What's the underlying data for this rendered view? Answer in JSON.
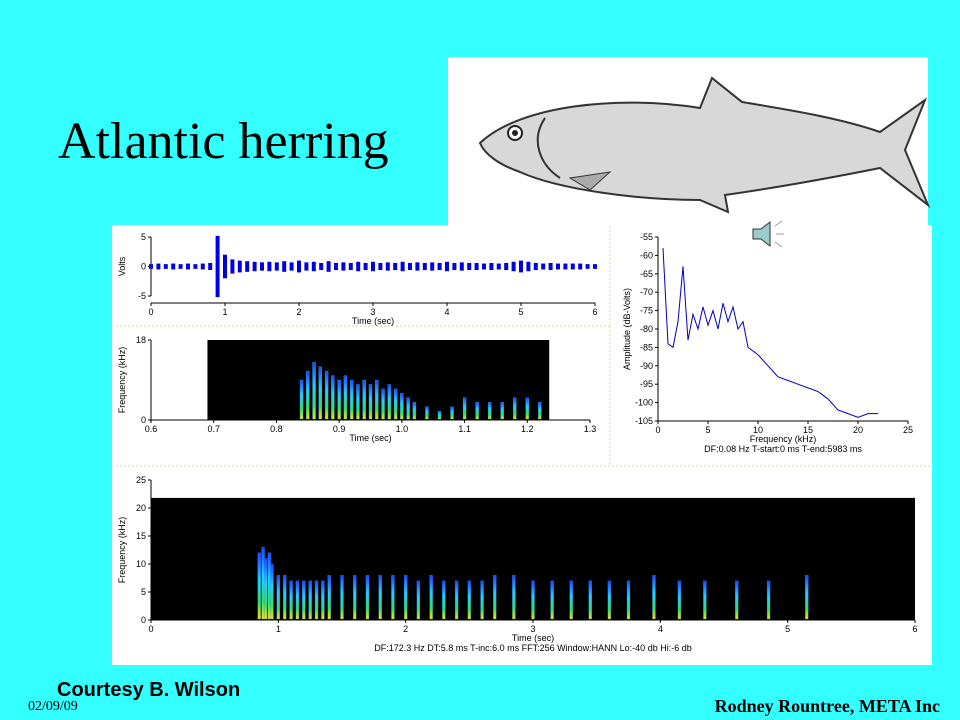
{
  "slide": {
    "title": "Atlantic herring",
    "credit": "Courtesy B. Wilson",
    "date": "02/09/09",
    "author": "Rodney Rountree, META Inc"
  },
  "chart_data": [
    {
      "type": "waveform",
      "xlabel": "Time (sec)",
      "ylabel": "Volts",
      "color": "#0000e0",
      "xlim": [
        0,
        6
      ],
      "ylim": [
        -5,
        5
      ],
      "xticks": [
        0,
        1,
        2,
        3,
        4,
        5,
        6
      ],
      "yticks": [
        -5,
        0,
        5
      ],
      "x": [
        0,
        0.1,
        0.2,
        0.3,
        0.4,
        0.5,
        0.6,
        0.7,
        0.8,
        0.9,
        1.0,
        1.1,
        1.2,
        1.3,
        1.4,
        1.5,
        1.6,
        1.7,
        1.8,
        1.9,
        2.0,
        2.1,
        2.2,
        2.3,
        2.4,
        2.5,
        2.6,
        2.7,
        2.8,
        2.9,
        3.0,
        3.1,
        3.2,
        3.3,
        3.4,
        3.5,
        3.6,
        3.7,
        3.8,
        3.9,
        4.0,
        4.1,
        4.2,
        4.3,
        4.4,
        4.5,
        4.6,
        4.7,
        4.8,
        4.9,
        5.0,
        5.1,
        5.2,
        5.3,
        5.4,
        5.5,
        5.6,
        5.7,
        5.8,
        5.9,
        6.0
      ],
      "values": [
        0.4,
        0.5,
        0.4,
        0.5,
        0.4,
        0.5,
        0.4,
        0.5,
        0.6,
        5.2,
        2.0,
        1.2,
        1.0,
        0.9,
        0.8,
        0.7,
        0.8,
        0.7,
        0.9,
        0.7,
        1.0,
        0.7,
        0.8,
        0.6,
        0.9,
        0.6,
        0.7,
        0.6,
        0.8,
        0.6,
        0.8,
        0.6,
        0.7,
        0.6,
        0.8,
        0.6,
        0.7,
        0.6,
        0.7,
        0.6,
        0.8,
        0.6,
        0.7,
        0.6,
        0.6,
        0.5,
        0.6,
        0.5,
        0.6,
        0.8,
        1.0,
        0.8,
        0.6,
        0.5,
        0.6,
        0.5,
        0.5,
        0.5,
        0.5,
        0.4,
        0.4
      ]
    },
    {
      "type": "spectrogram",
      "xlabel": "Time (sec)",
      "ylabel": "Frequency (kHz)",
      "color": "#20c0ff",
      "xlim": [
        0.6,
        1.3
      ],
      "ylim": [
        0,
        18
      ],
      "xticks": [
        0.6,
        0.7,
        0.8,
        0.9,
        {
          "value": 1,
          "label": "1.0"
        },
        1.1,
        1.2,
        1.3
      ],
      "yticks": [
        0,
        18
      ],
      "plot_extent": {
        "x": [
          0.69,
          1.235
        ],
        "y": [
          0,
          18
        ]
      },
      "x": [
        0.84,
        0.85,
        0.86,
        0.87,
        0.88,
        0.89,
        0.9,
        0.91,
        0.92,
        0.93,
        0.94,
        0.95,
        0.96,
        0.97,
        0.98,
        0.99,
        1.0,
        1.01,
        1.02,
        1.04,
        1.06,
        1.08,
        1.1,
        1.12,
        1.14,
        1.16,
        1.18,
        1.2,
        1.22
      ],
      "values": [
        9,
        11,
        13,
        12,
        11,
        10,
        9,
        10,
        9,
        8,
        9,
        8,
        9,
        7,
        8,
        7,
        6,
        5,
        4,
        3,
        2,
        3,
        5,
        4,
        4,
        4,
        5,
        5,
        4
      ]
    },
    {
      "type": "line",
      "xlabel": "Frequency (kHz)",
      "ylabel": "Amplitude (dB-Volts)",
      "color": "#0000c0",
      "note": "DF:0.08 Hz   T-start:0 ms   T-end:5983 ms",
      "xlim": [
        0,
        25
      ],
      "ylim": [
        -105,
        -55
      ],
      "xticks": [
        0,
        5,
        10,
        15,
        20,
        25
      ],
      "yticks": [
        -55,
        -60,
        -65,
        -70,
        -75,
        -80,
        -85,
        -90,
        -95,
        -100,
        -105
      ],
      "x": [
        0.5,
        1,
        1.5,
        2,
        2.5,
        3,
        3.5,
        4,
        4.5,
        5,
        5.5,
        6,
        6.5,
        7,
        7.5,
        8,
        8.5,
        9,
        10,
        11,
        12,
        13,
        14,
        15,
        16,
        17,
        18,
        19,
        20,
        21,
        22
      ],
      "values": [
        -58,
        -84,
        -85,
        -78,
        -63,
        -83,
        -76,
        -80,
        -74,
        -79,
        -75,
        -80,
        -73,
        -78,
        -74,
        -80,
        -78,
        -85,
        -87,
        -90,
        -93,
        -94,
        -95,
        -96,
        -97,
        -99,
        -102,
        -103,
        -104,
        -103,
        -103
      ]
    },
    {
      "type": "spectrogram",
      "xlabel": "Time (sec)",
      "ylabel": "Frequency (kHz)",
      "color": "#2080ff",
      "note": "DF:172.3 Hz   DT:5.8 ms   T-inc:6.0 ms   FFT:256   Window:HANN   Lo:-40 db   Hi:-6 db",
      "xlim": [
        0,
        6
      ],
      "ylim": [
        0,
        25
      ],
      "xticks": [
        0,
        1,
        2,
        3,
        4,
        5,
        6
      ],
      "yticks": [
        0,
        5,
        10,
        15,
        20,
        25
      ],
      "plot_extent": {
        "x": [
          0,
          6
        ],
        "y": [
          0,
          21.8
        ]
      },
      "x": [
        0.85,
        0.88,
        0.9,
        0.93,
        0.95,
        1.0,
        1.05,
        1.1,
        1.15,
        1.2,
        1.25,
        1.3,
        1.35,
        1.4,
        1.5,
        1.6,
        1.7,
        1.8,
        1.9,
        2.0,
        2.1,
        2.2,
        2.3,
        2.4,
        2.5,
        2.6,
        2.7,
        2.85,
        3.0,
        3.15,
        3.3,
        3.45,
        3.6,
        3.75,
        3.95,
        4.15,
        4.35,
        4.6,
        4.85,
        5.15
      ],
      "values": [
        12,
        13,
        11,
        12,
        10,
        8,
        8,
        7,
        7,
        7,
        7,
        7,
        7,
        8,
        8,
        8,
        8,
        8,
        8,
        8,
        7,
        8,
        7,
        7,
        7,
        7,
        8,
        8,
        7,
        7,
        7,
        7,
        7,
        7,
        8,
        7,
        7,
        7,
        7,
        8
      ]
    }
  ]
}
